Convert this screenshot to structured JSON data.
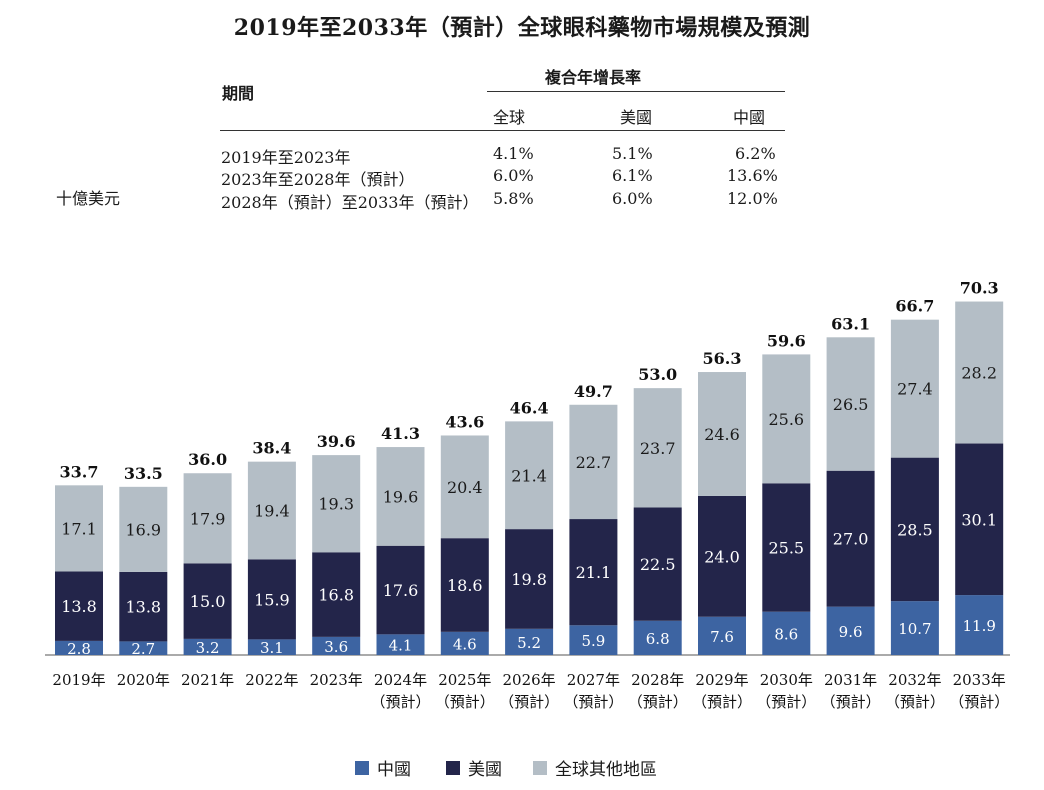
{
  "title": "2019年至2033年（預計）全球眼科藥物市場規模及預測",
  "cagr_table": {
    "period_header": "期間",
    "cagr_header": "複合年增長率",
    "columns": [
      "全球",
      "美國",
      "中國"
    ],
    "rows": [
      {
        "period": "2019年至2023年",
        "values": [
          "4.1%",
          "5.1%",
          "6.2%"
        ]
      },
      {
        "period": "2023年至2028年（預計）",
        "values": [
          "6.0%",
          "6.1%",
          "13.6%"
        ]
      },
      {
        "period": "2028年（預計）至2033年（預計）",
        "values": [
          "5.8%",
          "6.0%",
          "12.0%"
        ]
      }
    ]
  },
  "unit_label": "十億美元",
  "chart_data": {
    "type": "bar",
    "stacked": true,
    "categories": [
      "2019年",
      "2020年",
      "2021年",
      "2022年",
      "2023年",
      "2024年",
      "2025年",
      "2026年",
      "2027年",
      "2028年",
      "2029年",
      "2030年",
      "2031年",
      "2032年",
      "2033年"
    ],
    "category_sublabels": [
      "",
      "",
      "",
      "",
      "",
      "（預計）",
      "（預計）",
      "（預計）",
      "（預計）",
      "（預計）",
      "（預計）",
      "（預計）",
      "（預計）",
      "（預計）",
      "（預計）"
    ],
    "series": [
      {
        "name": "中國",
        "color": "#3d64a2",
        "values": [
          2.8,
          2.7,
          3.2,
          3.1,
          3.6,
          4.1,
          4.6,
          5.2,
          5.9,
          6.8,
          7.6,
          8.6,
          9.6,
          10.7,
          11.9
        ]
      },
      {
        "name": "美國",
        "color": "#23254a",
        "values": [
          13.8,
          13.8,
          15.0,
          15.9,
          16.8,
          17.6,
          18.6,
          19.8,
          21.1,
          22.5,
          24.0,
          25.5,
          27.0,
          28.5,
          30.1
        ]
      },
      {
        "name": "全球其他地區",
        "color": "#b4bec6",
        "values": [
          17.1,
          16.9,
          17.9,
          19.4,
          19.3,
          19.6,
          20.4,
          21.4,
          22.7,
          23.7,
          24.6,
          25.6,
          26.5,
          27.4,
          28.2
        ]
      }
    ],
    "totals": [
      33.7,
      33.5,
      36.0,
      38.4,
      39.6,
      41.3,
      43.6,
      46.4,
      49.7,
      53.0,
      56.3,
      59.6,
      63.1,
      66.7,
      70.3
    ],
    "ylim": [
      0,
      75
    ],
    "grid": false,
    "legend_position": "bottom"
  }
}
